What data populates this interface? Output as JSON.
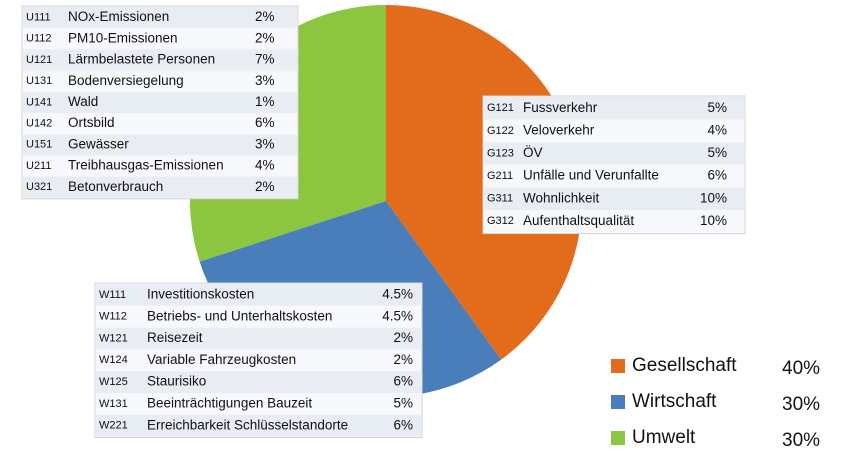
{
  "chart_data": {
    "type": "pie",
    "categories": [
      "Gesellschaft",
      "Wirtschaft",
      "Umwelt"
    ],
    "values": [
      40,
      30,
      30
    ],
    "value_labels": [
      "40%",
      "30%",
      "30%"
    ],
    "colors": [
      "#e36c1c",
      "#4a7ebb",
      "#8cc63f"
    ]
  },
  "tables": [
    {
      "rows": [
        [
          "U111",
          "NOx-Emissionen",
          "2%"
        ],
        [
          "U112",
          "PM10-Emissionen",
          "2%"
        ],
        [
          "U121",
          "Lärmbelastete Personen",
          "7%"
        ],
        [
          "U131",
          "Bodenversiegelung",
          "3%"
        ],
        [
          "U141",
          "Wald",
          "1%"
        ],
        [
          "U142",
          "Ortsbild",
          "6%"
        ],
        [
          "U151",
          "Gewässer",
          "3%"
        ],
        [
          "U211",
          "Treibhausgas-Emissionen",
          "4%"
        ],
        [
          "U321",
          "Betonverbrauch",
          "2%"
        ]
      ]
    },
    {
      "rows": [
        [
          "G121",
          "Fussverkehr",
          "5%"
        ],
        [
          "G122",
          "Veloverkehr",
          "4%"
        ],
        [
          "G123",
          "ÖV",
          "5%"
        ],
        [
          "G211",
          "Unfälle und Verunfallte",
          "6%"
        ],
        [
          "G311",
          "Wohnlichkeit",
          "10%"
        ],
        [
          "G312",
          "Aufenthaltsqualität",
          "10%"
        ]
      ]
    },
    {
      "rows": [
        [
          "W111",
          "Investitionskosten",
          "4.5%"
        ],
        [
          "W112",
          "Betriebs- und Unterhaltskosten",
          "4.5%"
        ],
        [
          "W121",
          "Reisezeit",
          "2%"
        ],
        [
          "W124",
          "Variable Fahrzeugkosten",
          "2%"
        ],
        [
          "W125",
          "Staurisiko",
          "6%"
        ],
        [
          "W131",
          "Beeinträchtigungen Bauzeit",
          "5%"
        ],
        [
          "W221",
          "Erreichbarkeit Schlüsselstandorte",
          "6%"
        ]
      ]
    }
  ]
}
